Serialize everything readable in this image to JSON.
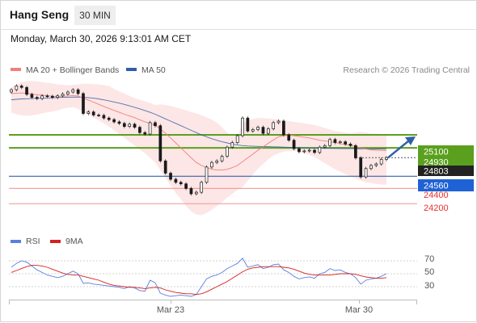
{
  "header": {
    "instrument": "Hang Seng",
    "timeframe": "30 MIN",
    "timestamp": "Monday, March 30, 2026 9:13:01 AM CET"
  },
  "legend": {
    "ma20_label": "MA 20 + Bollinger Bands",
    "ma50_label": "MA 50",
    "rsi_label": "RSI",
    "rsi_ma_label": "9MA",
    "copyright": "Research © 2026 Trading Central"
  },
  "colors": {
    "ma20": "#f08080",
    "ma50": "#2f5fa8",
    "bollinger_fill": "#fde3e3",
    "resistance": "#5aa01e",
    "pivot": "#1f4fa0",
    "support": "#f4a0a0",
    "current_price_tag": "#222222",
    "arrow": "#2f5fa8",
    "rsi": "#5b7fdc",
    "rsi_ma": "#d42020"
  },
  "chart_data": [
    {
      "type": "candlestick",
      "x_labels": [
        "Mar 23",
        "Mar 30"
      ],
      "ylim": [
        23950,
        25850
      ],
      "levels": [
        {
          "value": 25100,
          "label": "25100",
          "kind": "resistance"
        },
        {
          "value": 24930,
          "label": "24930",
          "kind": "resistance"
        },
        {
          "value": 24803,
          "label": "24803",
          "kind": "current_price"
        },
        {
          "value": 24560,
          "label": "24560",
          "kind": "pivot"
        },
        {
          "value": 24400,
          "label": "24400",
          "kind": "support"
        },
        {
          "value": 24200,
          "label": "24200",
          "kind": "support"
        }
      ],
      "close": [
        25690,
        25740,
        25720,
        25630,
        25590,
        25575,
        25610,
        25605,
        25590,
        25610,
        25635,
        25660,
        25690,
        25640,
        25380,
        25400,
        25360,
        25355,
        25320,
        25300,
        25270,
        25250,
        25210,
        25240,
        25200,
        25130,
        25110,
        25260,
        25220,
        24760,
        24600,
        24520,
        24480,
        24460,
        24400,
        24330,
        24350,
        24480,
        24680,
        24740,
        24760,
        24820,
        24940,
        25000,
        25090,
        25320,
        25150,
        25170,
        25200,
        25120,
        25180,
        25260,
        25280,
        25100,
        25030,
        24920,
        24880,
        24890,
        24900,
        24870,
        24940,
        24960,
        25040,
        25000,
        25010,
        24980,
        24960,
        24800,
        24550,
        24660,
        24700,
        24720,
        24780,
        24803
      ],
      "ma20": [
        25640,
        25645,
        25648,
        25642,
        25635,
        25626,
        25620,
        25612,
        25605,
        25603,
        25605,
        25608,
        25612,
        25608,
        25580,
        25555,
        25528,
        25500,
        25472,
        25446,
        25420,
        25395,
        25370,
        25348,
        25325,
        25298,
        25270,
        25250,
        25225,
        25180,
        25120,
        25060,
        24995,
        24930,
        24865,
        24800,
        24740,
        24700,
        24672,
        24652,
        24640,
        24640,
        24650,
        24672,
        24700,
        24750,
        24800,
        24848,
        24900,
        24945,
        24990,
        25035,
        25075,
        25090,
        25095,
        25090,
        25080,
        25070,
        25060,
        25045,
        25030,
        25020,
        25012,
        25000,
        24985,
        24975,
        24965,
        24950,
        24930,
        24915,
        24905,
        24900,
        24898,
        24895
      ],
      "bb_upper": [
        25720,
        25760,
        25790,
        25800,
        25805,
        25800,
        25790,
        25780,
        25772,
        25760,
        25755,
        25750,
        25755,
        25760,
        25770,
        25770,
        25765,
        25760,
        25750,
        25740,
        25700,
        25670,
        25640,
        25610,
        25580,
        25560,
        25540,
        25520,
        25490,
        25500,
        25490,
        25480,
        25460,
        25440,
        25420,
        25400,
        25380,
        25355,
        25330,
        25300,
        25260,
        25200,
        25130,
        25090,
        25080,
        25250,
        25290,
        25310,
        25320,
        25320,
        25315,
        25310,
        25300,
        25290,
        25280,
        25270,
        25260,
        25250,
        25240,
        25230,
        25210,
        25190,
        25170,
        25150,
        25140,
        25130,
        25120,
        25130,
        25140,
        25130,
        25120,
        25120,
        25110,
        25100
      ],
      "bb_lower": [
        25390,
        25370,
        25355,
        25350,
        25355,
        25365,
        25380,
        25395,
        25405,
        25420,
        25440,
        25455,
        25460,
        25440,
        25400,
        25370,
        25330,
        25290,
        25250,
        25210,
        25160,
        25110,
        25060,
        25010,
        24960,
        24910,
        24860,
        24800,
        24740,
        24640,
        24540,
        24440,
        24340,
        24260,
        24170,
        24100,
        24060,
        24050,
        24080,
        24120,
        24170,
        24220,
        24280,
        24330,
        24380,
        24420,
        24500,
        24580,
        24660,
        24720,
        24780,
        24830,
        24860,
        24880,
        24890,
        24890,
        24880,
        24860,
        24840,
        24810,
        24770,
        24730,
        24690,
        24650,
        24620,
        24590,
        24560,
        24530,
        24500,
        24480,
        24470,
        24460,
        24450,
        24450
      ],
      "ma50": [
        25560,
        25565,
        25570,
        25572,
        25575,
        25578,
        25580,
        25582,
        25585,
        25587,
        25590,
        25592,
        25594,
        25595,
        25592,
        25587,
        25580,
        25570,
        25558,
        25545,
        25530,
        25515,
        25498,
        25480,
        25460,
        25440,
        25418,
        25395,
        25370,
        25340,
        25310,
        25280,
        25250,
        25220,
        25190,
        25160,
        25130,
        25100,
        25075,
        25050,
        25030,
        25010,
        24995,
        24980,
        24968,
        24960,
        24955,
        24952,
        24950,
        24948,
        24946,
        24944,
        24942,
        24940,
        24938,
        24936,
        24934,
        24932,
        24930,
        24928,
        24926,
        24925,
        24924,
        24923,
        24922,
        24921,
        24920,
        24919,
        24918,
        24917,
        24917,
        24916,
        24916,
        24915
      ]
    },
    {
      "type": "line",
      "name": "RSI panel",
      "ylim": [
        15,
        85
      ],
      "yticks": [
        70,
        50,
        30
      ],
      "rsi": [
        60,
        66,
        70,
        68,
        62,
        56,
        52,
        48,
        46,
        44,
        46,
        50,
        54,
        50,
        35,
        36,
        34,
        33,
        32,
        31,
        30,
        29,
        27,
        30,
        28,
        24,
        23,
        40,
        36,
        20,
        17,
        15,
        16,
        17,
        16,
        15,
        18,
        30,
        42,
        46,
        48,
        52,
        58,
        62,
        66,
        74,
        60,
        62,
        64,
        58,
        60,
        64,
        65,
        56,
        52,
        46,
        42,
        44,
        45,
        43,
        50,
        52,
        58,
        55,
        56,
        52,
        50,
        44,
        34,
        40,
        42,
        43,
        46,
        50
      ],
      "rsi_ma": [
        52,
        55,
        58,
        61,
        63,
        63,
        62,
        60,
        57,
        54,
        51,
        49,
        48,
        48,
        46,
        44,
        42,
        40,
        37,
        34,
        32,
        31,
        30,
        29,
        29,
        28,
        27,
        28,
        29,
        28,
        25,
        23,
        21,
        20,
        19,
        19,
        18,
        19,
        22,
        26,
        30,
        34,
        38,
        43,
        48,
        53,
        57,
        59,
        60,
        61,
        61,
        61,
        61,
        60,
        59,
        57,
        54,
        51,
        49,
        48,
        48,
        48,
        48,
        49,
        50,
        50,
        50,
        49,
        47,
        45,
        44,
        43,
        43,
        44
      ]
    }
  ]
}
